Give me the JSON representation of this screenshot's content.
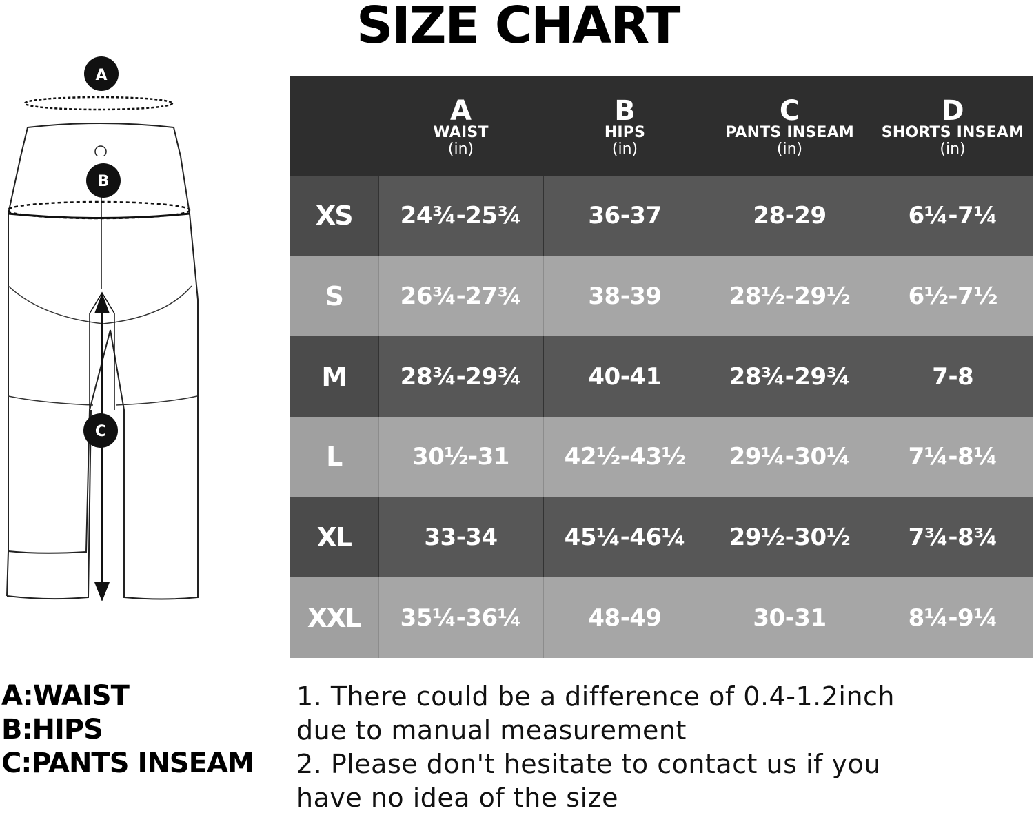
{
  "title": "SIZE CHART",
  "diagram": {
    "markers": [
      "A",
      "B",
      "C"
    ]
  },
  "table": {
    "columns": [
      {
        "letter": "A",
        "name": "WAIST",
        "unit": "(in)"
      },
      {
        "letter": "B",
        "name": "HIPS",
        "unit": "(in)"
      },
      {
        "letter": "C",
        "name": "PANTS INSEAM",
        "unit": "(in)"
      },
      {
        "letter": "D",
        "name": "SHORTS INSEAM",
        "unit": "(in)"
      }
    ],
    "rows": [
      {
        "size": "XS",
        "values": [
          "24¾-25¾",
          "36-37",
          "28-29",
          "6¼-7¼"
        ]
      },
      {
        "size": "S",
        "values": [
          "26¾-27¾",
          "38-39",
          "28½-29½",
          "6½-7½"
        ]
      },
      {
        "size": "M",
        "values": [
          "28¾-29¾",
          "40-41",
          "28¾-29¾",
          "7-8"
        ]
      },
      {
        "size": "L",
        "values": [
          "30½-31",
          "42½-43½",
          "29¼-30¼",
          "7¼-8¼"
        ]
      },
      {
        "size": "XL",
        "values": [
          "33-34",
          "45¼-46¼",
          "29½-30½",
          "7¾-8¾"
        ]
      },
      {
        "size": "XXL",
        "values": [
          "35¼-36¼",
          "48-49",
          "30-31",
          "8¼-9¼"
        ]
      }
    ]
  },
  "legend": [
    "A:WAIST",
    "B:HIPS",
    "C:PANTS INSEAM"
  ],
  "notes": [
    "1. There could be a difference of 0.4-1.2inch",
    "due to manual measurement",
    "2. Please don't hesitate to contact us if you",
    "have no idea of the size"
  ],
  "colors": {
    "header_bg": "#2e2e2e",
    "dark_row": "#575757",
    "light_row": "#a6a6a6",
    "text_light": "#ffffff"
  }
}
